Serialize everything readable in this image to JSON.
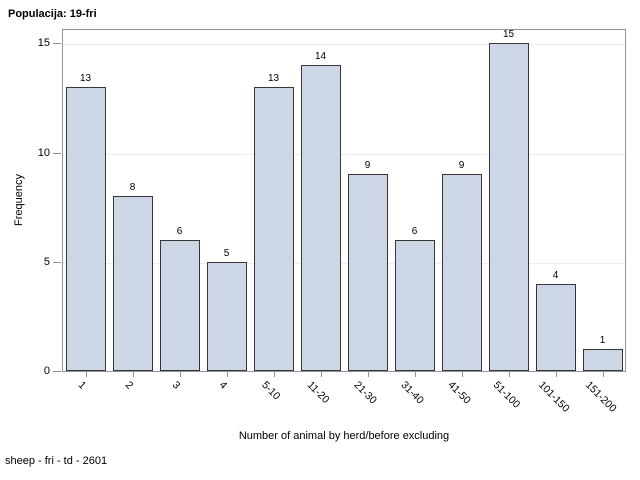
{
  "title": "Populacija: 19-fri",
  "footer": "sheep - fri - td - 2601",
  "chart_data": {
    "type": "bar",
    "title": "Populacija: 19-fri",
    "categories": [
      "1",
      "2",
      "3",
      "4",
      "5-10",
      "11-20",
      "21-30",
      "31-40",
      "41-50",
      "51-100",
      "101-150",
      "151-200"
    ],
    "values": [
      13,
      8,
      6,
      5,
      13,
      14,
      9,
      6,
      9,
      15,
      4,
      1
    ],
    "xlabel": "Number of animal by herd/before excluding",
    "ylabel": "Frequency",
    "yticks": [
      0,
      5,
      10,
      15
    ],
    "ylim": [
      0,
      15.7
    ],
    "grid": true,
    "legend": "none",
    "bar_fill": "#ccd6e4",
    "bar_stroke": "#373737",
    "frame_color": "#909499",
    "grid_color": "#ededed"
  }
}
